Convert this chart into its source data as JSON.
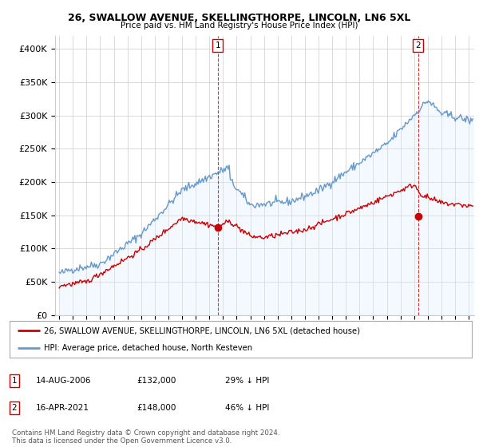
{
  "title": "26, SWALLOW AVENUE, SKELLINGTHORPE, LINCOLN, LN6 5XL",
  "subtitle": "Price paid vs. HM Land Registry's House Price Index (HPI)",
  "legend_label_red": "26, SWALLOW AVENUE, SKELLINGTHORPE, LINCOLN, LN6 5XL (detached house)",
  "legend_label_blue": "HPI: Average price, detached house, North Kesteven",
  "footer": "Contains HM Land Registry data © Crown copyright and database right 2024.\nThis data is licensed under the Open Government Licence v3.0.",
  "point1_date": "14-AUG-2006",
  "point1_price": "£132,000",
  "point1_hpi": "29% ↓ HPI",
  "point2_date": "16-APR-2021",
  "point2_price": "£148,000",
  "point2_hpi": "46% ↓ HPI",
  "ylim": [
    0,
    420000
  ],
  "yticks": [
    0,
    50000,
    100000,
    150000,
    200000,
    250000,
    300000,
    350000,
    400000
  ],
  "ytick_labels": [
    "£0",
    "£50K",
    "£100K",
    "£150K",
    "£200K",
    "£250K",
    "£300K",
    "£350K",
    "£400K"
  ],
  "red_color": "#cc0000",
  "blue_color": "#6699cc",
  "blue_fill_color": "#ddeeff",
  "background_color": "#ffffff",
  "grid_color": "#cccccc",
  "point1_x_year": 2006.62,
  "point1_y_red": 132000,
  "point2_x_year": 2021.29,
  "point2_y_red": 148000,
  "xlim_left": 1994.7,
  "xlim_right": 2025.4
}
